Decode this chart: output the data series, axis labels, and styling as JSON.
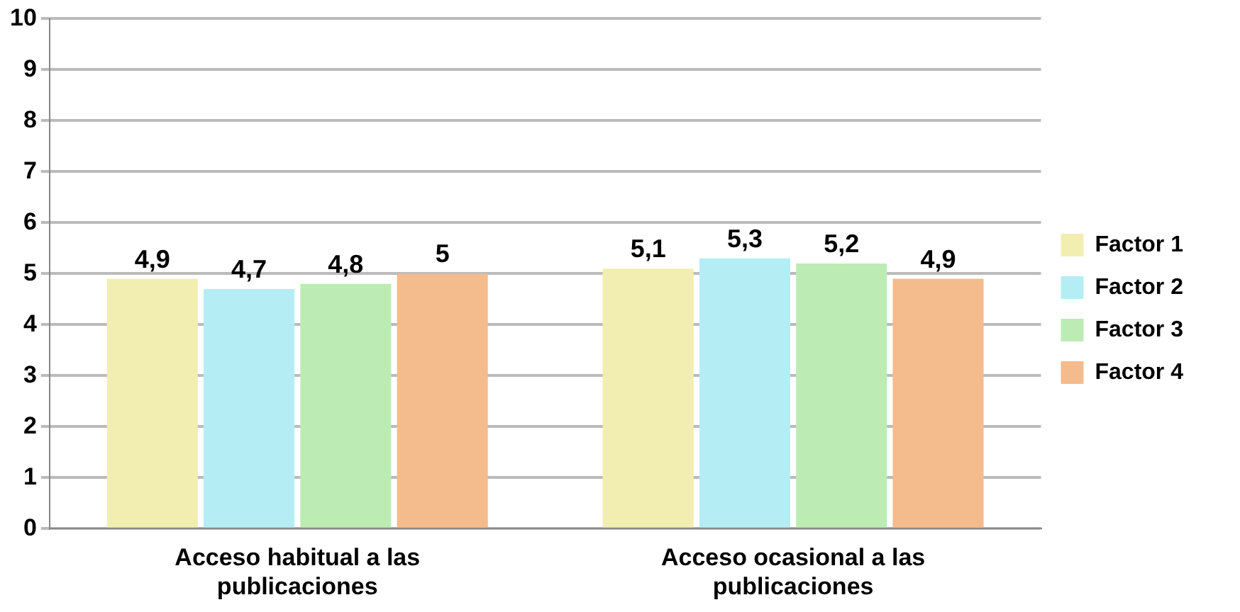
{
  "chart_data": {
    "type": "bar",
    "categories": [
      "Acceso habitual a las publicaciones",
      "Acceso ocasional a las publicaciones"
    ],
    "series": [
      {
        "name": "Factor 1",
        "color": "#f2eeb2",
        "values": [
          4.9,
          5.1
        ],
        "value_labels": [
          "4,9",
          "5,1"
        ]
      },
      {
        "name": "Factor 2",
        "color": "#b4eef4",
        "values": [
          4.7,
          5.3
        ],
        "value_labels": [
          "4,7",
          "5,3"
        ]
      },
      {
        "name": "Factor 3",
        "color": "#bcecb4",
        "values": [
          4.8,
          5.2
        ],
        "value_labels": [
          "4,8",
          "5,2"
        ]
      },
      {
        "name": "Factor 4",
        "color": "#f4bc8c",
        "values": [
          5,
          4.9
        ],
        "value_labels": [
          "5",
          "4,9"
        ]
      }
    ],
    "ylim": [
      0,
      10
    ],
    "yticks": [
      0,
      1,
      2,
      3,
      4,
      5,
      6,
      7,
      8,
      9,
      10
    ],
    "grid": "y",
    "legend": "right"
  }
}
